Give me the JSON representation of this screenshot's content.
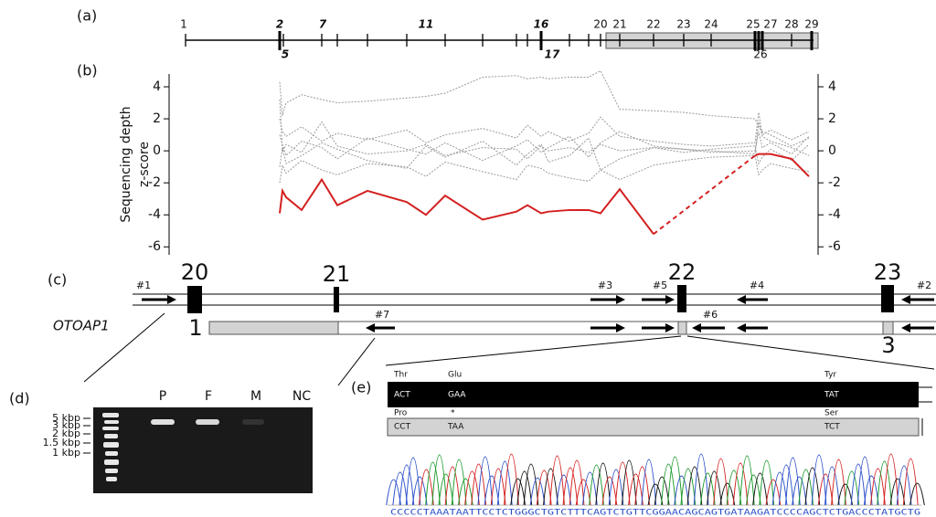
{
  "panel_labels": [
    "(a)",
    "(b)",
    "(c)",
    "(d)",
    "(e)"
  ],
  "exon_map": {
    "top_labels": [
      "1",
      "2",
      "7",
      "11",
      "16",
      "20",
      "21",
      "22",
      "23",
      "24",
      "25",
      "27",
      "28",
      "29"
    ],
    "bottom_labels": [
      "5",
      "17",
      "26"
    ]
  },
  "chart_data": {
    "type": "line",
    "y_label": [
      "Sequencing depth",
      "z-score"
    ],
    "x": [
      2,
      3,
      4,
      5,
      6,
      7,
      8,
      9,
      10,
      11,
      12,
      13,
      14,
      15,
      16,
      17,
      18,
      19,
      20,
      21,
      22,
      23,
      24,
      25,
      26,
      27,
      28,
      29
    ],
    "ylim": [
      -6.5,
      4.8
    ],
    "yticks": [
      4,
      2,
      0,
      -2,
      -4,
      -6
    ],
    "series": [
      {
        "color": "#9a9a9a",
        "values": [
          4.3,
          2.2,
          3.0,
          3.5,
          3.2,
          3.0,
          3.1,
          3.3,
          3.4,
          3.6,
          4.6,
          4.7,
          4.5,
          4.6,
          4.5,
          4.6,
          4.6,
          5.0,
          2.6,
          2.5,
          2.4,
          2.2,
          2.0,
          1.5,
          1.2,
          1.0,
          0.3,
          0.8
        ]
      },
      {
        "color": "#9a9a9a",
        "values": [
          1.0,
          0.4,
          -0.3,
          0.6,
          0.2,
          -0.5,
          0.8,
          0.1,
          -0.2,
          0.5,
          -0.6,
          0.3,
          0.7,
          -0.1,
          0.2,
          0.9,
          -0.4,
          0.5,
          1.2,
          0.3,
          0.1,
          0.0,
          -0.2,
          1.8,
          0.9,
          0.6,
          0.2,
          -0.3
        ]
      },
      {
        "color": "#9a9a9a",
        "values": [
          -1.0,
          0.2,
          -0.8,
          -0.3,
          0.5,
          0.1,
          -0.6,
          -1.1,
          0.3,
          -0.4,
          0.6,
          -0.9,
          -0.2,
          0.4,
          -0.7,
          -0.3,
          0.8,
          -1.2,
          -0.5,
          0.2,
          -0.1,
          0.1,
          0.3,
          -0.8,
          -0.4,
          0.1,
          -0.6,
          0.4
        ]
      },
      {
        "color": "#9a9a9a",
        "values": [
          2.0,
          1.2,
          0.9,
          1.5,
          0.6,
          1.1,
          0.7,
          1.3,
          0.5,
          1.0,
          1.4,
          0.8,
          1.6,
          0.9,
          1.2,
          0.6,
          1.1,
          2.1,
          0.9,
          0.6,
          0.4,
          0.3,
          0.5,
          2.4,
          1.0,
          1.3,
          0.7,
          1.2
        ]
      },
      {
        "color": "#9a9a9a",
        "values": [
          -2.0,
          -0.9,
          -1.4,
          -0.6,
          -1.2,
          -1.5,
          -0.8,
          -1.0,
          -1.6,
          -0.7,
          -1.3,
          -1.8,
          -0.9,
          -1.1,
          -1.4,
          -1.7,
          -1.9,
          -1.2,
          -1.8,
          -0.9,
          -0.6,
          -0.4,
          -0.3,
          -1.5,
          -1.2,
          -0.8,
          -1.1,
          -1.3
        ]
      },
      {
        "color": "#9a9a9a",
        "values": [
          3.2,
          0.0,
          0.4,
          -0.1,
          1.8,
          0.3,
          -0.2,
          0.0,
          0.4,
          -0.3,
          0.2,
          0.1,
          -0.5,
          0.3,
          0.0,
          0.2,
          -0.1,
          0.4,
          0.0,
          0.2,
          0.1,
          -0.1,
          0.0,
          1.2,
          0.2,
          0.5,
          -0.2,
          0.9
        ]
      },
      {
        "color": "#d42020",
        "values": [
          -3.9,
          -2.5,
          -2.9,
          -3.7,
          -1.8,
          -3.4,
          -2.5,
          -3.2,
          -4.0,
          -2.8,
          -4.3,
          -3.8,
          -3.4,
          -3.9,
          -3.8,
          -3.7,
          -3.7,
          -3.9,
          -2.4,
          -5.2,
          null,
          null,
          -0.3,
          -0.2,
          -0.2,
          -0.2,
          -0.5,
          -1.6
        ]
      }
    ]
  },
  "gene_model": {
    "exons": [
      "20",
      "21",
      "22",
      "23"
    ],
    "primers": [
      "#1",
      "#7",
      "#3",
      "#5",
      "#4",
      "#2",
      "#6"
    ],
    "pseudogene": "OTOAP1",
    "pseudogene_exons": [
      "1",
      "3"
    ]
  },
  "gel": {
    "lanes": [
      "P",
      "F",
      "M",
      "NC"
    ],
    "ladder": [
      "5 kbp",
      "3 kbp",
      "2 kbp",
      "1.5 kbp",
      "1 kbp"
    ]
  },
  "sequence": {
    "ref_aa": [
      "Thr",
      "Glu",
      "Tyr"
    ],
    "ref_codons": [
      "ACT",
      "GAA",
      "TAT"
    ],
    "alt_aa": [
      "Pro",
      "*",
      "Ser"
    ],
    "alt_codons": [
      "CCT",
      "TAA",
      "TCT"
    ],
    "trace": "CCCCCTAAATAATTCCTCTGGGCTGTCTTTCAGTCTGTTCGGAACAGCAGTGATAAGATCCCCAGCTCTGACCCTATGCTG"
  }
}
